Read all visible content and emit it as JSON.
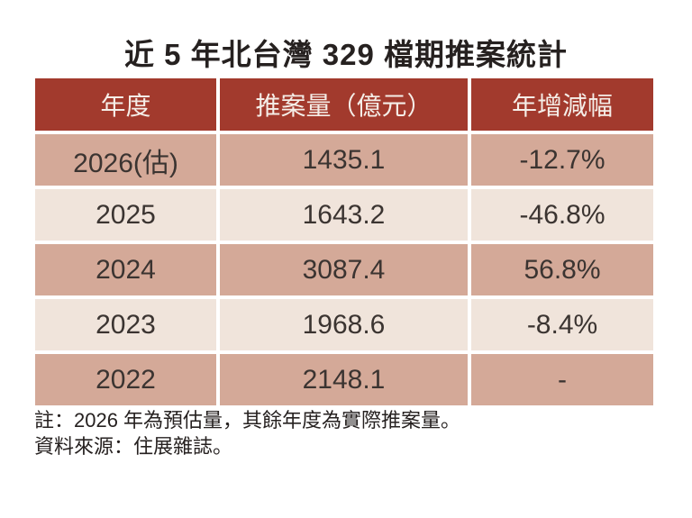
{
  "chart_data": {
    "type": "table",
    "title": "近 5 年北台灣 329 檔期推案統計",
    "columns": [
      "年度",
      "推案量（億元）",
      "年增減幅"
    ],
    "column_keys": [
      "year",
      "volume_100m_ntd",
      "yoy_change"
    ],
    "rows": [
      [
        "2026(估)",
        "1435.1",
        "-12.7%"
      ],
      [
        "2025",
        "1643.2",
        "-46.8%"
      ],
      [
        "2024",
        "3087.4",
        "56.8%"
      ],
      [
        "2023",
        "1968.6",
        "-8.4%"
      ],
      [
        "2022",
        "2148.1",
        "-"
      ]
    ],
    "numeric_values": {
      "years": [
        "2026 (est.)",
        "2025",
        "2024",
        "2023",
        "2022"
      ],
      "volumes": [
        1435.1,
        1643.2,
        3087.4,
        1968.6,
        2148.1
      ],
      "yoy_percent": [
        -12.7,
        -46.8,
        56.8,
        -8.4,
        null
      ]
    },
    "notes": [
      "註：2026 年為預估量，其餘年度為實際推案量。",
      "資料來源：住展雜誌。"
    ],
    "layout_hints": {
      "row_striping": "alternating dark/light starting dark",
      "header_position": "top"
    }
  },
  "colors": {
    "header_bg": "#A23A2D",
    "header_text": "#F5EEE8",
    "row_dark_bg": "#D4A998",
    "row_light_bg": "#F0E4DB",
    "body_text": "#3B3431",
    "title_text": "#262120",
    "grid_gap": "#FFFFFF"
  }
}
